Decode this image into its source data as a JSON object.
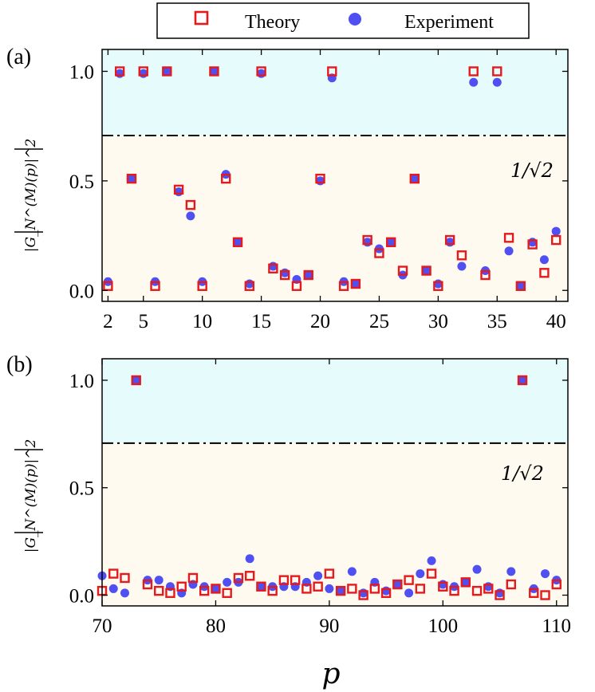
{
  "legend": {
    "theory_label": "Theory",
    "experiment_label": "Experiment",
    "placement": "top-center"
  },
  "colors": {
    "theory": "#e41a1c",
    "experiment": "#4f4ff2",
    "upper_region": "#e6fbfc",
    "lower_region": "#fefaf0"
  },
  "xlabel": "p",
  "chart_data": [
    {
      "type": "scatter",
      "panel_label": "(a)",
      "ylabel": "|G_N^(M)(p)|^2",
      "threshold_label": "1/√2",
      "threshold": 0.7071,
      "xlim": [
        1.5,
        41
      ],
      "ylim": [
        -0.05,
        1.1
      ],
      "xticks": [
        2,
        5,
        10,
        15,
        20,
        25,
        30,
        35,
        40
      ],
      "yticks": [
        "0.0",
        "0.5",
        "1.0"
      ],
      "ytick_values": [
        0,
        0.5,
        1.0
      ],
      "series": [
        {
          "name": "Theory",
          "x": [
            2,
            3,
            4,
            5,
            6,
            7,
            8,
            9,
            10,
            11,
            12,
            13,
            14,
            15,
            16,
            17,
            18,
            19,
            20,
            21,
            22,
            23,
            24,
            25,
            26,
            27,
            28,
            29,
            30,
            31,
            32,
            33,
            34,
            35,
            36,
            37,
            38,
            39,
            40
          ],
          "y": [
            0.02,
            1.0,
            0.51,
            1.0,
            0.02,
            1.0,
            0.46,
            0.39,
            0.02,
            1.0,
            0.51,
            0.22,
            0.02,
            1.0,
            0.1,
            0.07,
            0.02,
            0.07,
            0.51,
            1.0,
            0.02,
            0.03,
            0.23,
            0.17,
            0.22,
            0.09,
            0.51,
            0.09,
            0.02,
            0.23,
            0.16,
            1.0,
            0.07,
            1.0,
            0.24,
            0.02,
            0.21,
            0.08,
            0.23
          ]
        },
        {
          "name": "Experiment",
          "x": [
            2,
            3,
            4,
            5,
            6,
            7,
            8,
            9,
            10,
            11,
            12,
            13,
            14,
            15,
            16,
            17,
            18,
            19,
            20,
            21,
            22,
            23,
            24,
            25,
            26,
            27,
            28,
            29,
            30,
            31,
            32,
            33,
            34,
            35,
            36,
            37,
            38,
            39,
            40
          ],
          "y": [
            0.04,
            0.99,
            0.51,
            0.99,
            0.04,
            1.0,
            0.45,
            0.34,
            0.04,
            1.0,
            0.53,
            0.22,
            0.03,
            0.99,
            0.11,
            0.08,
            0.05,
            0.07,
            0.5,
            0.97,
            0.04,
            0.03,
            0.22,
            0.19,
            0.22,
            0.07,
            0.51,
            0.09,
            0.03,
            0.22,
            0.11,
            0.95,
            0.09,
            0.95,
            0.18,
            0.02,
            0.22,
            0.14,
            0.27
          ]
        }
      ]
    },
    {
      "type": "scatter",
      "panel_label": "(b)",
      "ylabel": "|G_N^(M)(p)|^2",
      "threshold_label": "1/√2",
      "threshold": 0.7071,
      "xlim": [
        70,
        111
      ],
      "ylim": [
        -0.05,
        1.1
      ],
      "xticks": [
        70,
        80,
        90,
        100,
        110
      ],
      "yticks": [
        "0.0",
        "0.5",
        "1.0"
      ],
      "ytick_values": [
        0,
        0.5,
        1.0
      ],
      "series": [
        {
          "name": "Theory",
          "x": [
            70,
            71,
            72,
            73,
            74,
            75,
            76,
            77,
            78,
            79,
            80,
            81,
            82,
            83,
            84,
            85,
            86,
            87,
            88,
            89,
            90,
            91,
            92,
            93,
            94,
            95,
            96,
            97,
            98,
            99,
            100,
            101,
            102,
            103,
            104,
            105,
            106,
            107,
            108,
            109,
            110
          ],
          "y": [
            0.02,
            0.1,
            0.08,
            1.0,
            0.05,
            0.02,
            0.01,
            0.04,
            0.08,
            0.02,
            0.03,
            0.01,
            0.08,
            0.09,
            0.04,
            0.02,
            0.07,
            0.07,
            0.03,
            0.04,
            0.1,
            0.02,
            0.03,
            0.0,
            0.03,
            0.01,
            0.05,
            0.07,
            0.03,
            0.1,
            0.04,
            0.02,
            0.06,
            0.02,
            0.03,
            0.0,
            0.05,
            1.0,
            0.01,
            0.0,
            0.05
          ]
        },
        {
          "name": "Experiment",
          "x": [
            70,
            71,
            72,
            73,
            74,
            75,
            76,
            77,
            78,
            79,
            80,
            81,
            82,
            83,
            84,
            85,
            86,
            87,
            88,
            89,
            90,
            91,
            92,
            93,
            94,
            95,
            96,
            97,
            98,
            99,
            100,
            101,
            102,
            103,
            104,
            105,
            106,
            107,
            108,
            109,
            110
          ],
          "y": [
            0.09,
            0.03,
            0.01,
            1.0,
            0.07,
            0.07,
            0.04,
            0.01,
            0.05,
            0.04,
            0.03,
            0.06,
            0.06,
            0.17,
            0.04,
            0.04,
            0.04,
            0.04,
            0.06,
            0.09,
            0.03,
            0.02,
            0.11,
            0.01,
            0.06,
            0.02,
            0.05,
            0.01,
            0.1,
            0.16,
            0.05,
            0.04,
            0.06,
            0.12,
            0.04,
            0.01,
            0.11,
            1.0,
            0.03,
            0.1,
            0.07
          ]
        }
      ]
    }
  ]
}
